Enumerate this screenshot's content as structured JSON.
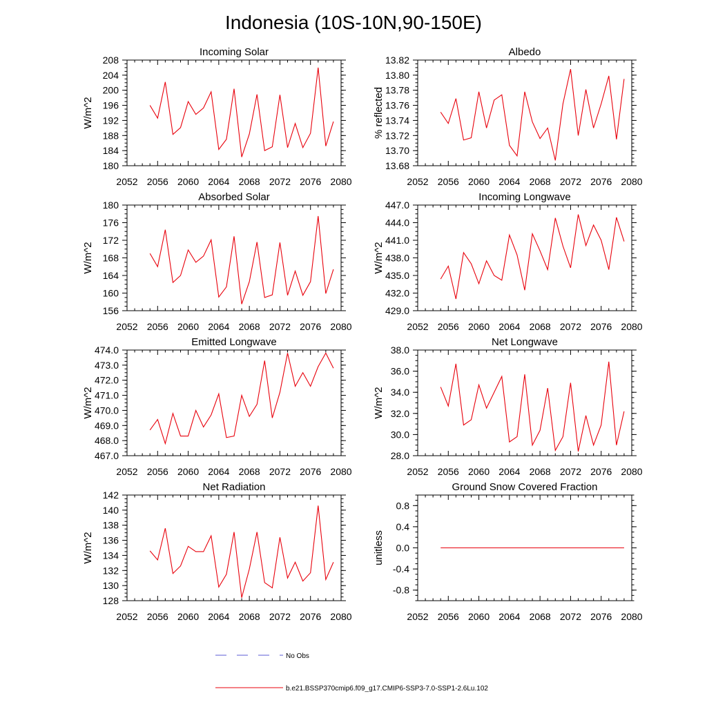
{
  "figure": {
    "title": "Indonesia (10S-10N,90-150E)"
  },
  "legend": {
    "items": [
      {
        "label": "No Obs",
        "color": "#5b5bd6",
        "dash": true
      },
      {
        "label": "b.e21.BSSP370cmip6.f09_g17.CMIP6-SSP3-7.0-SSP1-2.6Lu.102",
        "color": "#e8000b",
        "dash": false
      }
    ]
  },
  "series_color": "#e8000b",
  "chart_data": [
    {
      "type": "line",
      "title": "Incoming Solar",
      "ylabel": "W/m^2",
      "xlim": [
        2052,
        2080
      ],
      "ylim": [
        180,
        208
      ],
      "xticks": [
        "2052",
        "2056",
        "2060",
        "2064",
        "2068",
        "2072",
        "2076",
        "2080"
      ],
      "yticks": [
        "180",
        "184",
        "188",
        "192",
        "196",
        "200",
        "204",
        "208"
      ],
      "x": [
        2055,
        2056,
        2057,
        2058,
        2059,
        2060,
        2061,
        2062,
        2063,
        2064,
        2065,
        2066,
        2067,
        2068,
        2069,
        2070,
        2071,
        2072,
        2073,
        2074,
        2075,
        2076,
        2077,
        2078,
        2079
      ],
      "values": [
        196.0,
        192.6,
        202.2,
        188.3,
        190.1,
        197.0,
        193.6,
        195.3,
        199.6,
        184.3,
        187.0,
        200.4,
        182.3,
        188.4,
        198.9,
        184.0,
        185.0,
        198.8,
        184.8,
        191.2,
        184.8,
        188.6,
        206.0,
        185.2,
        191.7
      ]
    },
    {
      "type": "line",
      "title": "Albedo",
      "ylabel": "% reflected",
      "xlim": [
        2052,
        2080
      ],
      "ylim": [
        13.68,
        13.82
      ],
      "xticks": [
        "2052",
        "2056",
        "2060",
        "2064",
        "2068",
        "2072",
        "2076",
        "2080"
      ],
      "yticks": [
        "13.68",
        "13.70",
        "13.72",
        "13.74",
        "13.76",
        "13.78",
        "13.80",
        "13.82"
      ],
      "x": [
        2055,
        2056,
        2057,
        2058,
        2059,
        2060,
        2061,
        2062,
        2063,
        2064,
        2065,
        2066,
        2067,
        2068,
        2069,
        2070,
        2071,
        2072,
        2073,
        2074,
        2075,
        2076,
        2077,
        2078,
        2079
      ],
      "values": [
        13.751,
        13.736,
        13.769,
        13.714,
        13.717,
        13.778,
        13.73,
        13.767,
        13.774,
        13.707,
        13.693,
        13.778,
        13.738,
        13.716,
        13.73,
        13.687,
        13.762,
        13.808,
        13.72,
        13.781,
        13.73,
        13.762,
        13.799,
        13.715,
        13.795
      ]
    },
    {
      "type": "line",
      "title": "Absorbed Solar",
      "ylabel": "W/m^2",
      "xlim": [
        2052,
        2080
      ],
      "ylim": [
        156,
        180
      ],
      "xticks": [
        "2052",
        "2056",
        "2060",
        "2064",
        "2068",
        "2072",
        "2076",
        "2080"
      ],
      "yticks": [
        "156",
        "160",
        "164",
        "168",
        "172",
        "176",
        "180"
      ],
      "x": [
        2055,
        2056,
        2057,
        2058,
        2059,
        2060,
        2061,
        2062,
        2063,
        2064,
        2065,
        2066,
        2067,
        2068,
        2069,
        2070,
        2071,
        2072,
        2073,
        2074,
        2075,
        2076,
        2077,
        2078,
        2079
      ],
      "values": [
        169.0,
        166.0,
        174.4,
        162.4,
        164.0,
        169.8,
        167.0,
        168.4,
        172.1,
        159.1,
        161.4,
        172.9,
        157.5,
        162.6,
        171.6,
        159.0,
        159.6,
        171.5,
        159.5,
        165.0,
        159.5,
        162.6,
        177.5,
        159.9,
        165.4
      ]
    },
    {
      "type": "line",
      "title": "Incoming Longwave",
      "ylabel": "W/m^2",
      "xlim": [
        2052,
        2080
      ],
      "ylim": [
        429.0,
        447.0
      ],
      "xticks": [
        "2052",
        "2056",
        "2060",
        "2064",
        "2068",
        "2072",
        "2076",
        "2080"
      ],
      "yticks": [
        "429.0",
        "432.0",
        "435.0",
        "438.0",
        "441.0",
        "444.0",
        "447.0"
      ],
      "x": [
        2055,
        2056,
        2057,
        2058,
        2059,
        2060,
        2061,
        2062,
        2063,
        2064,
        2065,
        2066,
        2067,
        2068,
        2069,
        2070,
        2071,
        2072,
        2073,
        2074,
        2075,
        2076,
        2077,
        2078,
        2079
      ],
      "values": [
        434.4,
        436.6,
        431.0,
        438.9,
        437.0,
        433.6,
        437.5,
        435.0,
        434.2,
        441.9,
        438.5,
        432.5,
        442.1,
        439.2,
        436.0,
        444.8,
        440.0,
        436.3,
        445.4,
        440.1,
        443.6,
        441.0,
        436.0,
        444.9,
        440.8
      ]
    },
    {
      "type": "line",
      "title": "Emitted Longwave",
      "ylabel": "W/m^2",
      "xlim": [
        2052,
        2080
      ],
      "ylim": [
        467.0,
        474.0
      ],
      "xticks": [
        "2052",
        "2056",
        "2060",
        "2064",
        "2068",
        "2072",
        "2076",
        "2080"
      ],
      "yticks": [
        "467.0",
        "468.0",
        "469.0",
        "470.0",
        "471.0",
        "472.0",
        "473.0",
        "474.0"
      ],
      "x": [
        2055,
        2056,
        2057,
        2058,
        2059,
        2060,
        2061,
        2062,
        2063,
        2064,
        2065,
        2066,
        2067,
        2068,
        2069,
        2070,
        2071,
        2072,
        2073,
        2074,
        2075,
        2076,
        2077,
        2078,
        2079
      ],
      "values": [
        468.7,
        469.4,
        467.8,
        469.8,
        468.3,
        468.3,
        470.0,
        468.9,
        469.7,
        471.1,
        468.2,
        468.3,
        471.0,
        469.6,
        470.4,
        473.3,
        469.5,
        471.2,
        473.8,
        471.6,
        472.5,
        471.6,
        472.9,
        473.8,
        472.8
      ]
    },
    {
      "type": "line",
      "title": "Net Longwave",
      "ylabel": "W/m^2",
      "xlim": [
        2052,
        2080
      ],
      "ylim": [
        28.0,
        38.0
      ],
      "xticks": [
        "2052",
        "2056",
        "2060",
        "2064",
        "2068",
        "2072",
        "2076",
        "2080"
      ],
      "yticks": [
        "28.0",
        "30.0",
        "32.0",
        "34.0",
        "36.0",
        "38.0"
      ],
      "x": [
        2055,
        2056,
        2057,
        2058,
        2059,
        2060,
        2061,
        2062,
        2063,
        2064,
        2065,
        2066,
        2067,
        2068,
        2069,
        2070,
        2071,
        2072,
        2073,
        2074,
        2075,
        2076,
        2077,
        2078,
        2079
      ],
      "values": [
        34.5,
        32.7,
        36.7,
        30.9,
        31.4,
        34.7,
        32.5,
        34.0,
        35.5,
        29.3,
        29.8,
        35.7,
        29.0,
        30.4,
        34.4,
        28.5,
        29.8,
        34.9,
        28.4,
        31.8,
        29.0,
        30.9,
        36.9,
        29.0,
        32.2
      ]
    },
    {
      "type": "line",
      "title": "Net Radiation",
      "ylabel": "W/m^2",
      "xlim": [
        2052,
        2080
      ],
      "ylim": [
        128,
        142
      ],
      "xticks": [
        "2052",
        "2056",
        "2060",
        "2064",
        "2068",
        "2072",
        "2076",
        "2080"
      ],
      "yticks": [
        "128",
        "130",
        "132",
        "134",
        "136",
        "138",
        "140",
        "142"
      ],
      "x": [
        2055,
        2056,
        2057,
        2058,
        2059,
        2060,
        2061,
        2062,
        2063,
        2064,
        2065,
        2066,
        2067,
        2068,
        2069,
        2070,
        2071,
        2072,
        2073,
        2074,
        2075,
        2076,
        2077,
        2078,
        2079
      ],
      "values": [
        134.6,
        133.4,
        137.6,
        131.6,
        132.6,
        135.2,
        134.5,
        134.5,
        136.6,
        129.8,
        131.5,
        137.1,
        128.4,
        132.2,
        137.1,
        130.4,
        129.7,
        136.4,
        131.0,
        133.1,
        130.6,
        131.7,
        140.6,
        130.8,
        133.1
      ]
    },
    {
      "type": "line",
      "title": "Ground Snow Covered Fraction",
      "ylabel": "unitless",
      "xlim": [
        2052,
        2080
      ],
      "ylim": [
        -1.0,
        1.0
      ],
      "xticks": [
        "2052",
        "2056",
        "2060",
        "2064",
        "2068",
        "2072",
        "2076",
        "2080"
      ],
      "yticks": [
        "-0.8",
        "-0.4",
        "0.0",
        "0.4",
        "0.8"
      ],
      "ytick_values": [
        -0.8,
        -0.4,
        0.0,
        0.4,
        0.8
      ],
      "x": [
        2055,
        2056,
        2057,
        2058,
        2059,
        2060,
        2061,
        2062,
        2063,
        2064,
        2065,
        2066,
        2067,
        2068,
        2069,
        2070,
        2071,
        2072,
        2073,
        2074,
        2075,
        2076,
        2077,
        2078,
        2079
      ],
      "values": [
        0,
        0,
        0,
        0,
        0,
        0,
        0,
        0,
        0,
        0,
        0,
        0,
        0,
        0,
        0,
        0,
        0,
        0,
        0,
        0,
        0,
        0,
        0,
        0,
        0
      ]
    }
  ]
}
